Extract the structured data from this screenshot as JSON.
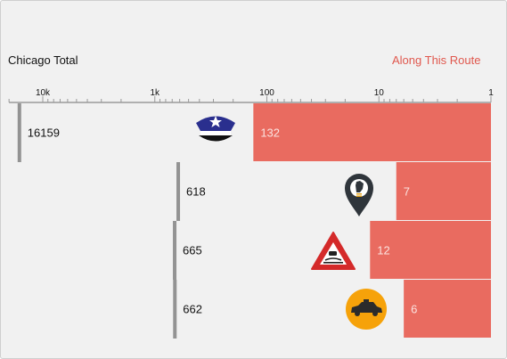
{
  "header": {
    "left_label": "Chicago Total",
    "right_label": "Along This Route"
  },
  "chart_data": {
    "type": "bar",
    "scale": "log",
    "axis_direction": "reversed",
    "xlim": [
      1,
      20000
    ],
    "ticks": [
      {
        "value": 10000,
        "label": "10k"
      },
      {
        "value": 1000,
        "label": "1k"
      },
      {
        "value": 100,
        "label": "100"
      },
      {
        "value": 10,
        "label": "10"
      },
      {
        "value": 1,
        "label": "1"
      }
    ],
    "rows": [
      {
        "total": 16159,
        "route": 132,
        "icon": "police-officer-icon"
      },
      {
        "total": 618,
        "route": 7,
        "icon": "streetlight-location-icon"
      },
      {
        "total": 665,
        "route": 12,
        "icon": "road-hazard-sign-icon"
      },
      {
        "total": 662,
        "route": 6,
        "icon": "car-icon"
      }
    ],
    "colors": {
      "route_bar": "#e96b60",
      "route_label": "#fbe3e0",
      "total_marker": "#939393",
      "axis": "#9a9a9a",
      "background": "#f1f1f1"
    }
  }
}
